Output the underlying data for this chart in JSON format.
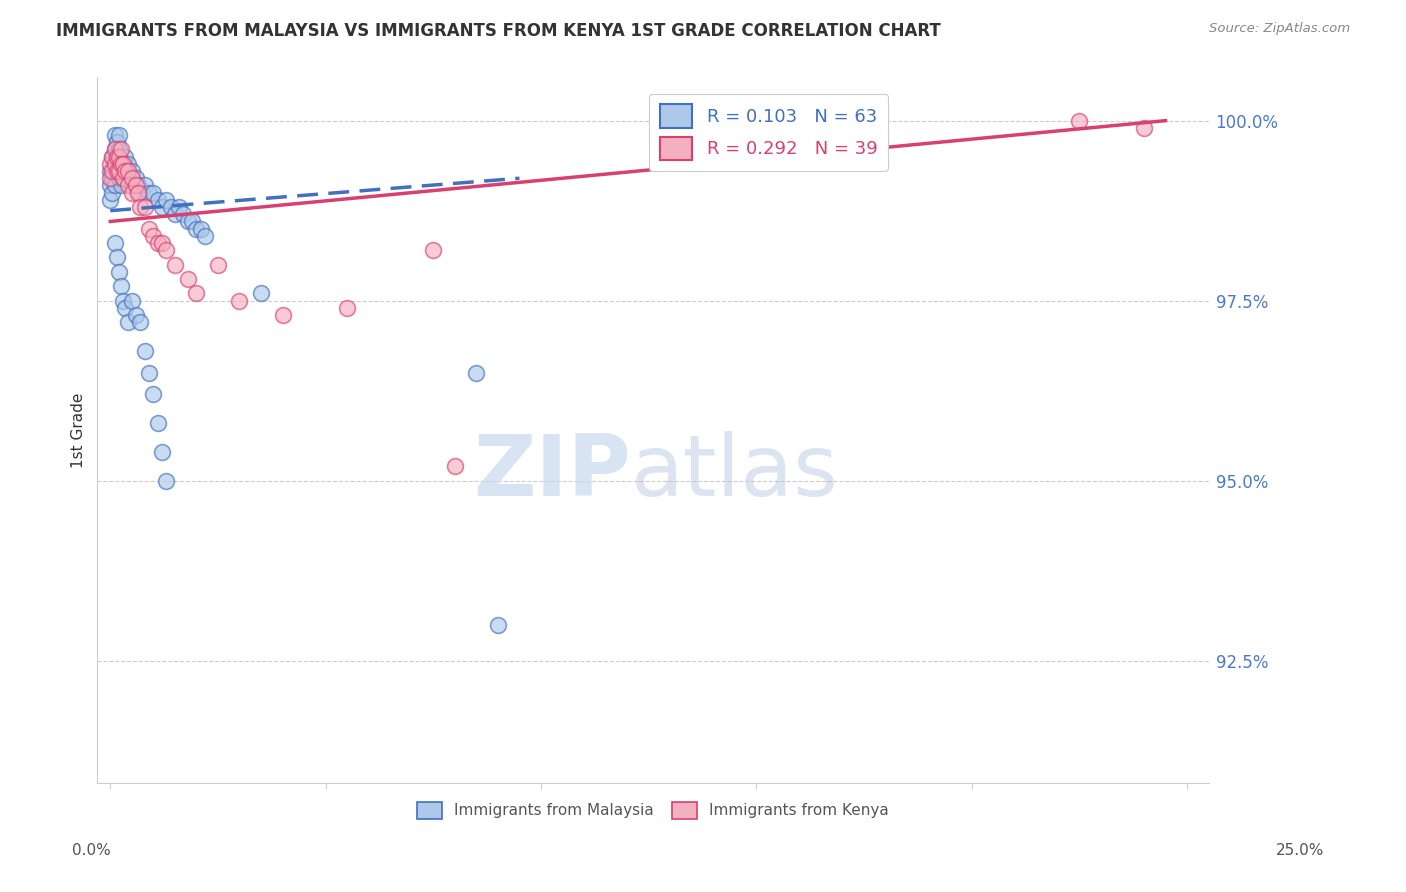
{
  "title": "IMMIGRANTS FROM MALAYSIA VS IMMIGRANTS FROM KENYA 1ST GRADE CORRELATION CHART",
  "source": "Source: ZipAtlas.com",
  "ylabel": "1st Grade",
  "ymin": 90.8,
  "ymax": 100.6,
  "xmin": -0.3,
  "xmax": 25.5,
  "malaysia_color": "#adc8e8",
  "kenya_color": "#f5b0c0",
  "trendline_malaysia_color": "#4070c0",
  "trendline_kenya_color": "#d84070",
  "legend_malaysia_R": "R = 0.103",
  "legend_malaysia_N": "N = 63",
  "legend_kenya_R": "R = 0.292",
  "legend_kenya_N": "N = 39",
  "malaysia_x": [
    0.0,
    0.0,
    0.0,
    0.05,
    0.05,
    0.05,
    0.1,
    0.1,
    0.1,
    0.1,
    0.15,
    0.15,
    0.15,
    0.2,
    0.2,
    0.2,
    0.2,
    0.25,
    0.25,
    0.3,
    0.3,
    0.35,
    0.35,
    0.4,
    0.5,
    0.5,
    0.6,
    0.65,
    0.7,
    0.8,
    0.9,
    1.0,
    1.1,
    1.2,
    1.3,
    1.4,
    1.5,
    1.6,
    1.7,
    1.8,
    1.9,
    2.0,
    2.1,
    2.2,
    0.1,
    0.15,
    0.2,
    0.25,
    0.3,
    0.35,
    0.4,
    0.5,
    0.6,
    0.7,
    0.8,
    0.9,
    1.0,
    1.1,
    1.2,
    1.3,
    3.5,
    8.5,
    9.0
  ],
  "malaysia_y": [
    99.3,
    99.1,
    98.9,
    99.5,
    99.2,
    99.0,
    99.8,
    99.6,
    99.4,
    99.1,
    99.7,
    99.5,
    99.3,
    99.8,
    99.6,
    99.4,
    99.2,
    99.3,
    99.1,
    99.4,
    99.2,
    99.5,
    99.3,
    99.4,
    99.3,
    99.1,
    99.2,
    99.1,
    99.0,
    99.1,
    99.0,
    99.0,
    98.9,
    98.8,
    98.9,
    98.8,
    98.7,
    98.8,
    98.7,
    98.6,
    98.6,
    98.5,
    98.5,
    98.4,
    98.3,
    98.1,
    97.9,
    97.7,
    97.5,
    97.4,
    97.2,
    97.5,
    97.3,
    97.2,
    96.8,
    96.5,
    96.2,
    95.8,
    95.4,
    95.0,
    97.6,
    96.5,
    93.0
  ],
  "kenya_x": [
    0.0,
    0.0,
    0.05,
    0.05,
    0.1,
    0.1,
    0.15,
    0.15,
    0.2,
    0.2,
    0.25,
    0.25,
    0.3,
    0.3,
    0.35,
    0.4,
    0.4,
    0.5,
    0.5,
    0.6,
    0.65,
    0.7,
    0.8,
    0.9,
    1.0,
    1.1,
    1.2,
    1.3,
    1.5,
    1.8,
    2.0,
    2.5,
    3.0,
    4.0,
    5.5,
    7.5,
    8.0,
    22.5,
    24.0
  ],
  "kenya_y": [
    99.4,
    99.2,
    99.5,
    99.3,
    99.6,
    99.4,
    99.5,
    99.3,
    99.5,
    99.3,
    99.6,
    99.4,
    99.4,
    99.2,
    99.3,
    99.3,
    99.1,
    99.2,
    99.0,
    99.1,
    99.0,
    98.8,
    98.8,
    98.5,
    98.4,
    98.3,
    98.3,
    98.2,
    98.0,
    97.8,
    97.6,
    98.0,
    97.5,
    97.3,
    97.4,
    98.2,
    95.2,
    100.0,
    99.9
  ],
  "trendline_malaysia_x0": 0.0,
  "trendline_malaysia_x1": 9.5,
  "trendline_malaysia_y0": 98.75,
  "trendline_malaysia_y1": 99.2,
  "trendline_kenya_x0": 0.0,
  "trendline_kenya_x1": 24.5,
  "trendline_kenya_y0": 98.6,
  "trendline_kenya_y1": 100.0,
  "yticks": [
    92.5,
    95.0,
    97.5,
    100.0
  ],
  "ytick_color": "#4a7bc8"
}
